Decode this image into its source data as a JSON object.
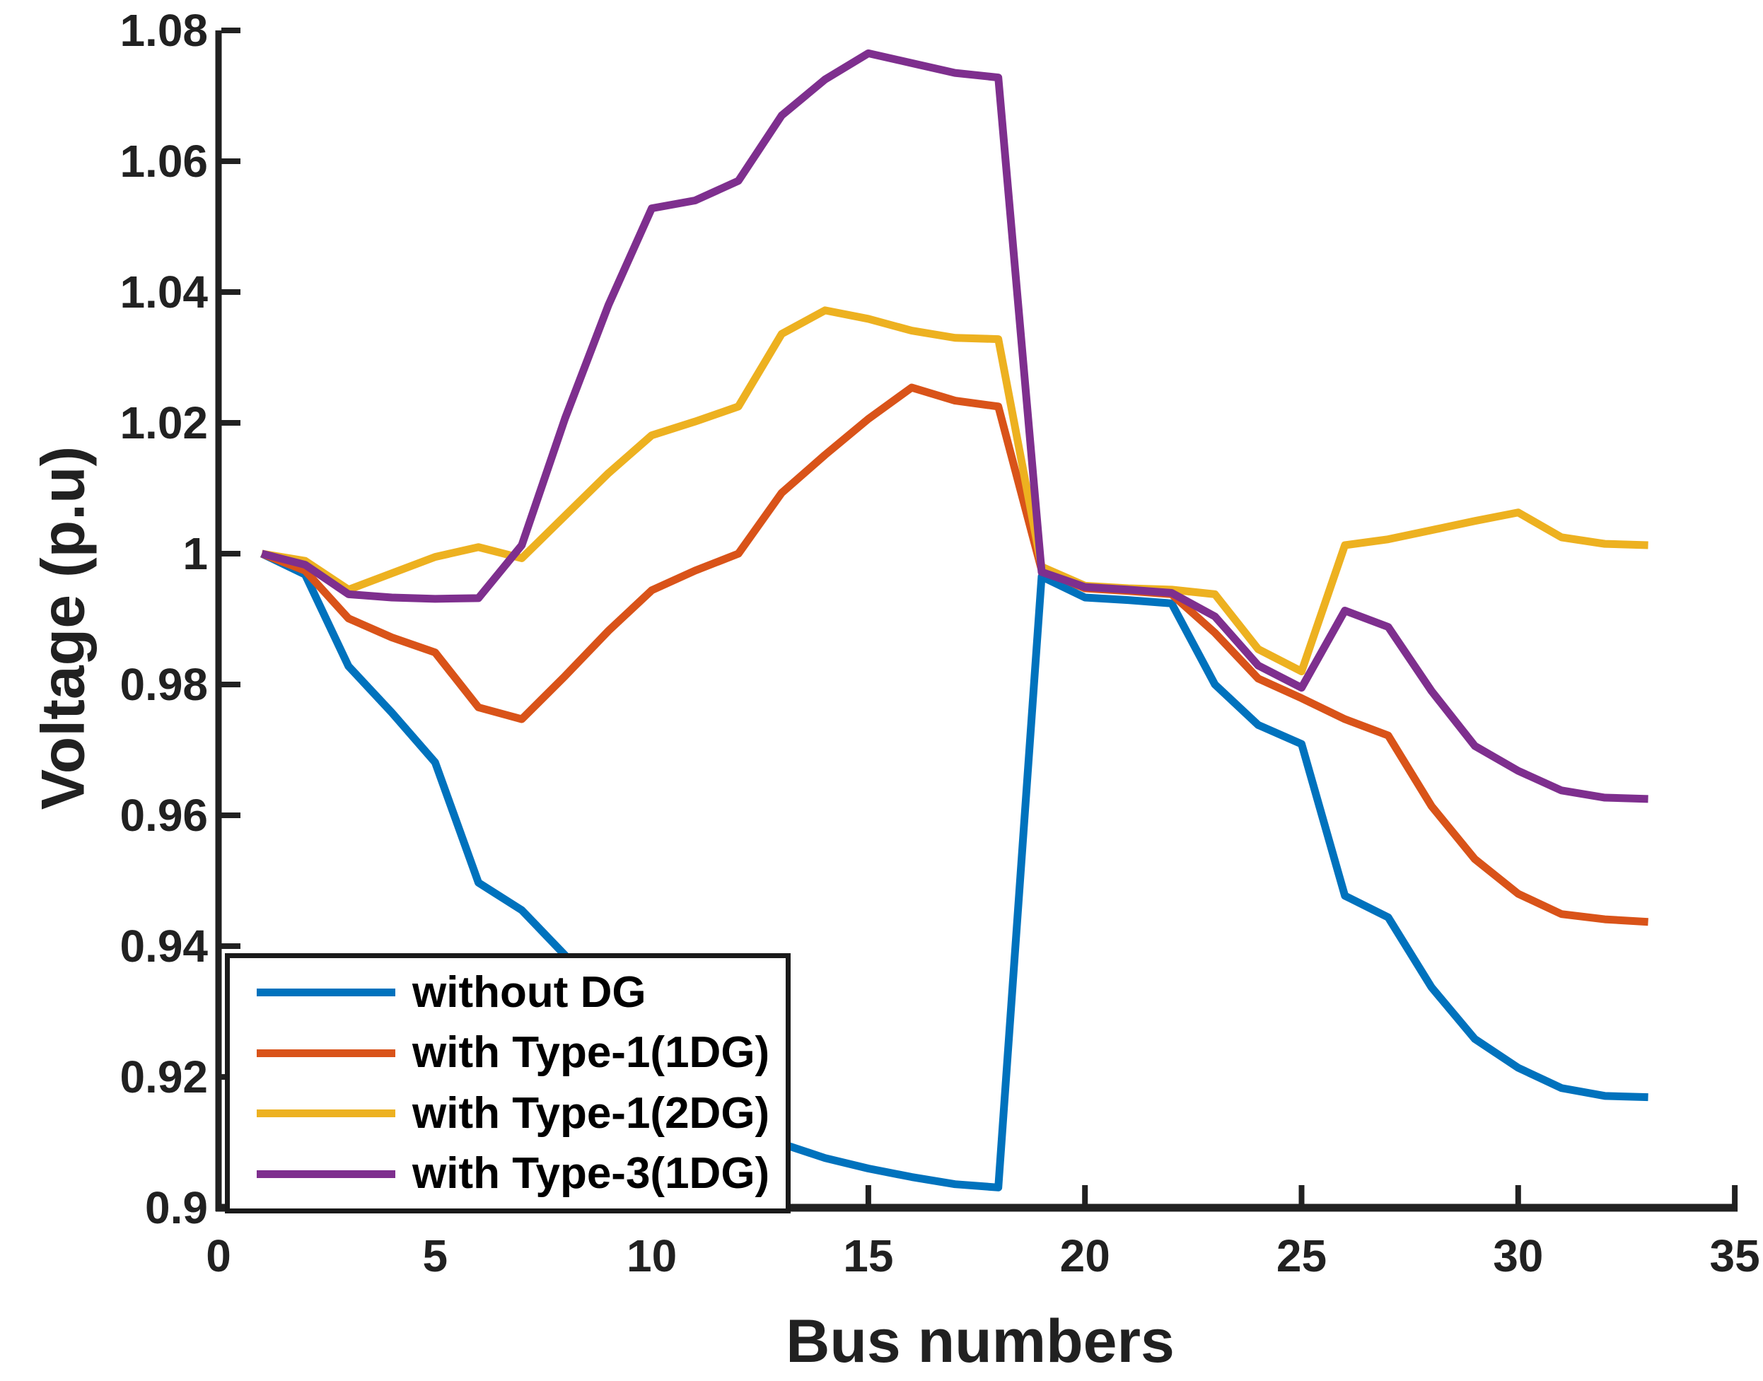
{
  "figure": {
    "background": "#ffffff",
    "axis_color": "#212121",
    "text_color": "#212121"
  },
  "chart_data": {
    "type": "line",
    "title": "",
    "xlabel": "Bus numbers",
    "ylabel": "Voltage (p.u)",
    "xlim": [
      0,
      35
    ],
    "ylim": [
      0.9,
      1.08
    ],
    "x_ticks": [
      0,
      5,
      10,
      15,
      20,
      25,
      30,
      35
    ],
    "x_tick_labels": [
      "0",
      "5",
      "10",
      "15",
      "20",
      "25",
      "30",
      "35"
    ],
    "y_ticks": [
      0.9,
      0.92,
      0.94,
      0.96,
      0.98,
      1.0,
      1.02,
      1.04,
      1.06,
      1.08
    ],
    "y_tick_labels": [
      "0.9",
      "0.92",
      "0.94",
      "0.96",
      "0.98",
      "1",
      "1.02",
      "1.04",
      "1.06",
      "1.08"
    ],
    "grid": false,
    "legend_position": "bottom-left-inside",
    "x": [
      1,
      2,
      3,
      4,
      5,
      6,
      7,
      8,
      9,
      10,
      11,
      12,
      13,
      14,
      15,
      16,
      17,
      18,
      19,
      20,
      21,
      22,
      23,
      24,
      25,
      26,
      27,
      28,
      29,
      30,
      31,
      32,
      33
    ],
    "series": [
      {
        "name": "without DG",
        "color": "#0072BD",
        "values": [
          1.0,
          0.9968,
          0.9828,
          0.9757,
          0.9681,
          0.9497,
          0.9455,
          0.9386,
          0.9299,
          0.9216,
          0.9205,
          0.9184,
          0.9098,
          0.9076,
          0.906,
          0.9047,
          0.9036,
          0.9031,
          0.9965,
          0.9933,
          0.9929,
          0.9924,
          0.98,
          0.9738,
          0.9709,
          0.9477,
          0.9444,
          0.9337,
          0.9258,
          0.9214,
          0.9183,
          0.9171,
          0.9169
        ]
      },
      {
        "name": "with Type-1(1DG)",
        "color": "#D95319",
        "values": [
          1.0,
          0.9974,
          0.9901,
          0.9872,
          0.9849,
          0.9765,
          0.9747,
          0.9813,
          0.9882,
          0.9944,
          0.9974,
          1.0,
          1.0093,
          1.0151,
          1.0206,
          1.0254,
          1.0234,
          1.0225,
          0.9975,
          0.9947,
          0.9943,
          0.9938,
          0.9879,
          0.9809,
          0.9779,
          0.9747,
          0.9722,
          0.9614,
          0.9533,
          0.948,
          0.9449,
          0.9441,
          0.9437
        ]
      },
      {
        "name": "with Type-1(2DG)",
        "color": "#EDB120",
        "values": [
          1.0,
          0.9989,
          0.9945,
          0.997,
          0.9995,
          1.001,
          0.9993,
          1.0058,
          1.0123,
          1.0181,
          1.0202,
          1.0225,
          1.0336,
          1.0372,
          1.0359,
          1.0341,
          1.033,
          1.0328,
          0.998,
          0.9951,
          0.9947,
          0.9945,
          0.9938,
          0.9854,
          0.982,
          1.0013,
          1.0022,
          1.0036,
          1.005,
          1.0063,
          1.0025,
          1.0015,
          1.0013
        ]
      },
      {
        "name": "with Type-3(1DG)",
        "color": "#7E2F8E",
        "values": [
          1.0,
          0.9983,
          0.9938,
          0.9933,
          0.9931,
          0.9932,
          1.0013,
          1.0207,
          1.038,
          1.0528,
          1.054,
          1.057,
          1.067,
          1.0725,
          1.0765,
          1.075,
          1.0735,
          1.0728,
          0.9972,
          0.9949,
          0.9945,
          0.994,
          0.9904,
          0.9829,
          0.9795,
          0.9913,
          0.9888,
          0.979,
          0.9706,
          0.9668,
          0.9638,
          0.9627,
          0.9625
        ]
      }
    ]
  }
}
